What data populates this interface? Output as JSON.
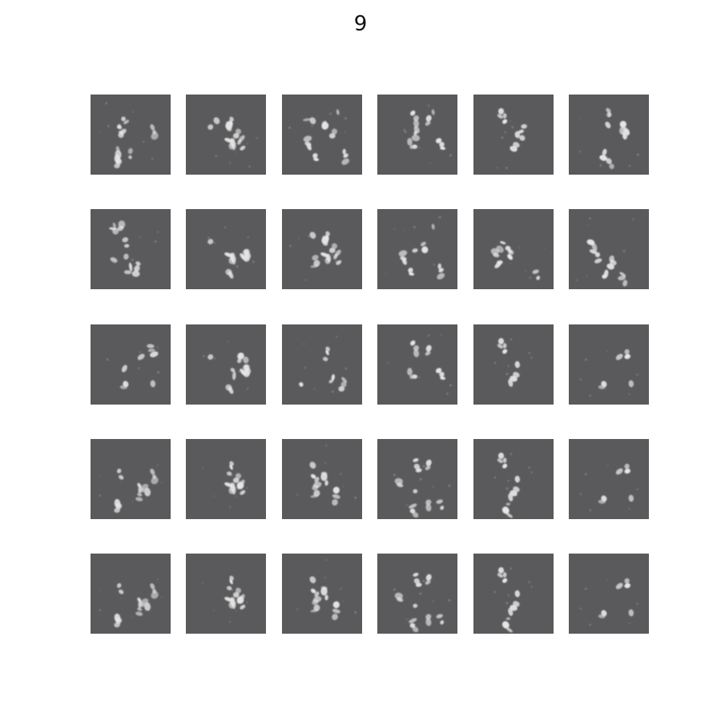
{
  "figure": {
    "title": "9"
  },
  "grid": {
    "rows": 5,
    "cols": 6,
    "tile_color": "#5a5a5c",
    "stroke_color": "#e6e6e6"
  }
}
